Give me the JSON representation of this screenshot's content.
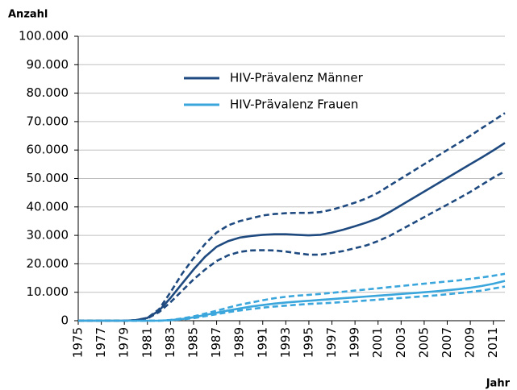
{
  "chart_data": {
    "type": "line",
    "y_label": "Anzahl",
    "x_label": "Jahr",
    "x": [
      1975,
      1976,
      1977,
      1978,
      1979,
      1980,
      1981,
      1982,
      1983,
      1984,
      1985,
      1986,
      1987,
      1988,
      1989,
      1990,
      1991,
      1992,
      1993,
      1994,
      1995,
      1996,
      1997,
      1998,
      1999,
      2000,
      2001,
      2002,
      2003,
      2004,
      2005,
      2006,
      2007,
      2008,
      2009,
      2010,
      2011,
      2012
    ],
    "xlim": [
      1975,
      2012
    ],
    "xticks": [
      1975,
      1977,
      1979,
      1981,
      1983,
      1985,
      1987,
      1989,
      1991,
      1993,
      1995,
      1997,
      1999,
      2001,
      2003,
      2005,
      2007,
      2009,
      2011
    ],
    "ylim": [
      0,
      100000
    ],
    "yticks": [
      0,
      {
        "value": 10000,
        "label": "10.000"
      },
      {
        "value": 20000,
        "label": "20.000"
      },
      {
        "value": 30000,
        "label": "30.000"
      },
      {
        "value": 40000,
        "label": "40.000"
      },
      {
        "value": 50000,
        "label": "50.000"
      },
      {
        "value": 60000,
        "label": "60.000"
      },
      {
        "value": 70000,
        "label": "70.000"
      },
      {
        "value": 80000,
        "label": "80.000"
      },
      {
        "value": 90000,
        "label": "90.000"
      },
      {
        "value": 100000,
        "label": "100.000"
      }
    ],
    "grid": true,
    "series": [
      {
        "name": "HIV-Prävalenz Männer",
        "color": "#1f4a80",
        "values": [
          0,
          0,
          0,
          0,
          0,
          200,
          1000,
          3500,
          8000,
          13000,
          18000,
          22500,
          26000,
          28000,
          29200,
          29800,
          30200,
          30400,
          30400,
          30200,
          30000,
          30200,
          31000,
          32000,
          33200,
          34500,
          36000,
          38200,
          40600,
          43000,
          45400,
          47800,
          50200,
          52600,
          55000,
          57400,
          59900,
          62500
        ]
      },
      {
        "name": "HIV-Prävalenz Frauen",
        "color": "#3aa6dc",
        "values": [
          0,
          0,
          0,
          0,
          0,
          0,
          0,
          0,
          200,
          600,
          1200,
          2000,
          2800,
          3600,
          4300,
          5000,
          5500,
          6000,
          6400,
          6700,
          7000,
          7300,
          7600,
          7900,
          8200,
          8500,
          8800,
          9100,
          9400,
          9700,
          10000,
          10300,
          10700,
          11100,
          11600,
          12200,
          13000,
          14000
        ]
      },
      {
        "color": "#1f4a80",
        "dashed": true,
        "values": [
          0,
          0,
          0,
          0,
          0,
          200,
          1000,
          4000,
          10000,
          16500,
          22000,
          27000,
          31000,
          33500,
          35000,
          36000,
          37000,
          37500,
          37800,
          37900,
          37900,
          38200,
          39000,
          40200,
          41500,
          43000,
          45000,
          47500,
          50000,
          52500,
          55000,
          57500,
          60000,
          62500,
          65000,
          67700,
          70300,
          73000
        ]
      },
      {
        "color": "#1f4a80",
        "dashed": true,
        "values": [
          0,
          0,
          0,
          0,
          0,
          150,
          800,
          3000,
          6500,
          10500,
          14500,
          18000,
          21000,
          23000,
          24200,
          24700,
          24800,
          24700,
          24300,
          23700,
          23200,
          23200,
          23800,
          24500,
          25500,
          26500,
          28000,
          29800,
          32000,
          34200,
          36400,
          38600,
          40800,
          43000,
          45300,
          47800,
          50300,
          52500
        ]
      },
      {
        "color": "#3aa6dc",
        "dashed": true,
        "values": [
          0,
          0,
          0,
          0,
          0,
          0,
          0,
          0,
          250,
          800,
          1500,
          2500,
          3500,
          4600,
          5600,
          6400,
          7200,
          7900,
          8400,
          8800,
          9100,
          9400,
          9800,
          10200,
          10600,
          11000,
          11400,
          11800,
          12200,
          12600,
          13000,
          13400,
          13800,
          14200,
          14700,
          15200,
          15800,
          16500
        ]
      },
      {
        "color": "#3aa6dc",
        "dashed": true,
        "values": [
          0,
          0,
          0,
          0,
          0,
          0,
          0,
          0,
          150,
          450,
          900,
          1600,
          2300,
          3000,
          3600,
          4100,
          4600,
          5000,
          5300,
          5600,
          5900,
          6100,
          6300,
          6600,
          6800,
          7100,
          7400,
          7700,
          8000,
          8300,
          8600,
          8900,
          9300,
          9700,
          10100,
          10600,
          11300,
          12000
        ]
      }
    ]
  }
}
